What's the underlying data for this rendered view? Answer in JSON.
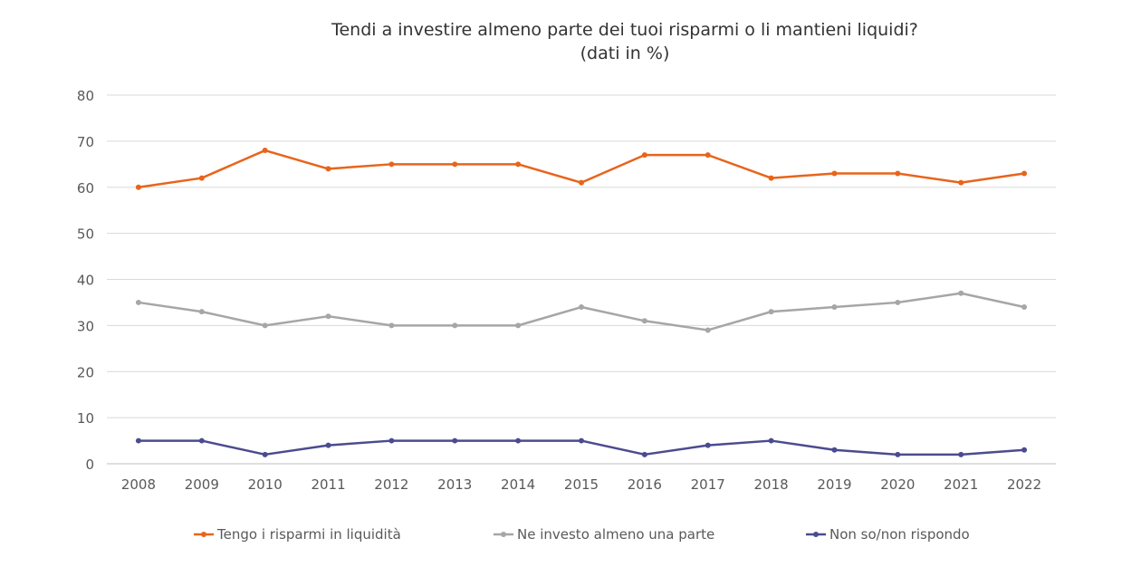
{
  "chart_data": {
    "type": "line",
    "title": "Tendi a investire almeno parte dei tuoi risparmi o li mantieni liquidi?",
    "subtitle": "(dati  in %)",
    "xlabel": "",
    "ylabel": "",
    "categories": [
      "2008",
      "2009",
      "2010",
      "2011",
      "2012",
      "2013",
      "2014",
      "2015",
      "2016",
      "2017",
      "2018",
      "2019",
      "2020",
      "2021",
      "2022"
    ],
    "ylim": [
      0,
      80
    ],
    "yticks": [
      0,
      10,
      20,
      30,
      40,
      50,
      60,
      70,
      80
    ],
    "grid": true,
    "legend_position": "bottom",
    "series": [
      {
        "name": "Tengo i risparmi in liquidità",
        "color": "#E8641B",
        "values": [
          60,
          62,
          68,
          64,
          65,
          65,
          65,
          61,
          67,
          67,
          62,
          63,
          63,
          61,
          63
        ]
      },
      {
        "name": "Ne investo almeno una parte",
        "color": "#A6A6A6",
        "values": [
          35,
          33,
          30,
          32,
          30,
          30,
          30,
          34,
          31,
          29,
          33,
          34,
          35,
          37,
          34
        ]
      },
      {
        "name": "Non so/non rispondo",
        "color": "#4B4B8F",
        "values": [
          5,
          5,
          2,
          4,
          5,
          5,
          5,
          5,
          2,
          4,
          5,
          3,
          2,
          2,
          3
        ]
      }
    ]
  }
}
